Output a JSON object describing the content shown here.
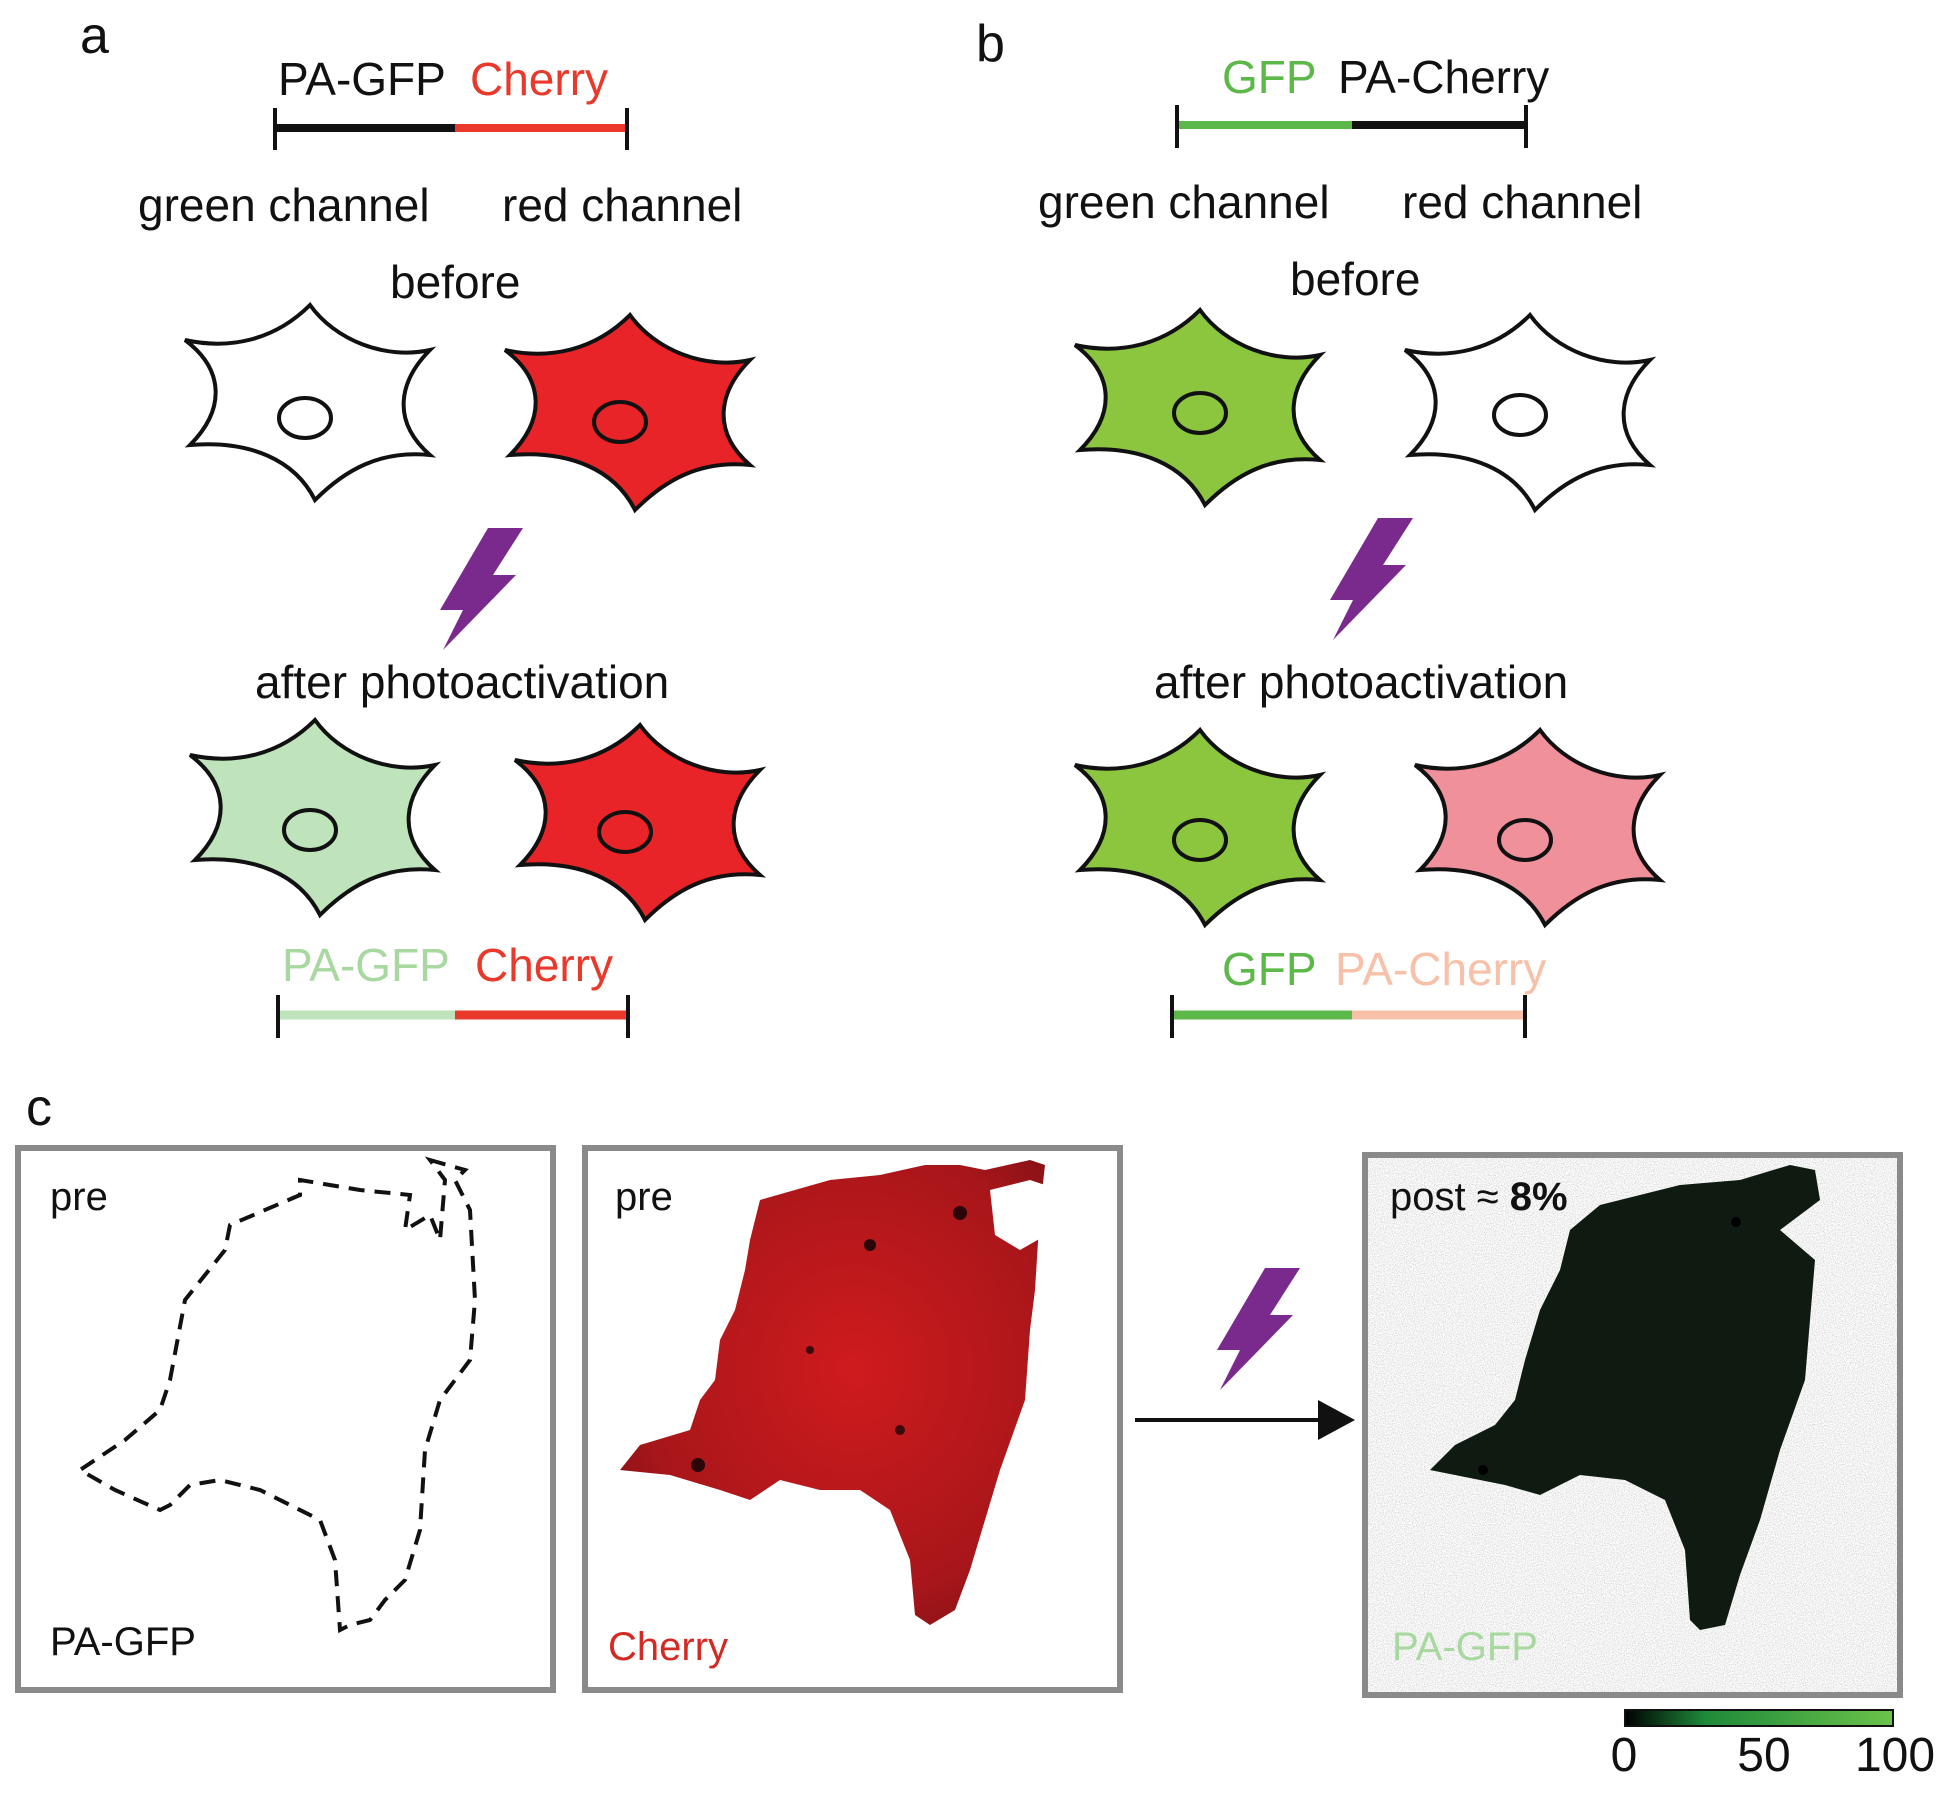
{
  "panel_a": {
    "letter": "a",
    "top_segments": [
      {
        "text": "PA-GFP",
        "color": "#111111"
      },
      {
        "text": "Cherry",
        "color": "#e8392b"
      }
    ],
    "green_channel": "green channel",
    "red_channel": "red channel",
    "before": "before",
    "after": "after photoactivation",
    "bottom_segments": [
      {
        "text": "PA-GFP",
        "color": "#a8d8a0"
      },
      {
        "text": "Cherry",
        "color": "#e8392b"
      }
    ],
    "cells_before": [
      "#ffffff",
      "#e82428"
    ],
    "cells_after": [
      "#bfe3bb",
      "#e82428"
    ]
  },
  "panel_b": {
    "letter": "b",
    "top_segments": [
      {
        "text": "GFP",
        "color": "#5cb848"
      },
      {
        "text": "PA-Cherry",
        "color": "#111111"
      }
    ],
    "green_channel": "green channel",
    "red_channel": "red channel",
    "before": "before",
    "after": "after photoactivation",
    "bottom_segments": [
      {
        "text": "GFP",
        "color": "#5cb848"
      },
      {
        "text": "PA-Cherry",
        "color": "#f7c0a8"
      }
    ],
    "cells_before": [
      "#8cc63f",
      "#ffffff"
    ],
    "cells_after": [
      "#8cc63f",
      "#f0909a"
    ]
  },
  "panel_c": {
    "letter": "c",
    "box1": {
      "top_label": "pre",
      "bottom_label": "PA-GFP",
      "bottom_color": "#111111"
    },
    "box2": {
      "top_label": "pre",
      "bottom_label": "Cherry",
      "bottom_color": "#d42a24"
    },
    "box3": {
      "top_label_prefix": "post ≈ ",
      "top_label_value": "8%",
      "bottom_label": "PA-GFP",
      "bottom_color": "#a8d8a0"
    },
    "colorbar": {
      "ticks": [
        "0",
        "50",
        "100"
      ]
    }
  },
  "colors": {
    "lightning": "#7a2a8c",
    "frame": "#8a8a8a"
  }
}
